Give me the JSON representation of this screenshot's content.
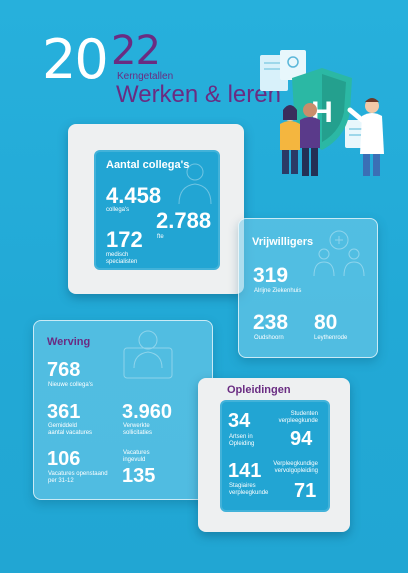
{
  "header": {
    "year_prefix": "20",
    "year_suffix": "22",
    "subtitle": "Kerngetallen",
    "title": "Werken & leren"
  },
  "colleagues": {
    "title": "Aantal collega's",
    "total_value": "4.458",
    "total_label": "collega's",
    "fte_value": "2.788",
    "fte_label": "fte",
    "specialists_value": "172",
    "specialists_label_1": "medisch",
    "specialists_label_2": "specialisten"
  },
  "volunteers": {
    "title": "Vrijwilligers",
    "alrijne_value": "319",
    "alrijne_label": "Alrijne Ziekenhuis",
    "oudshoorn_value": "238",
    "oudshoorn_label": "Oudshoorn",
    "leythenrode_value": "80",
    "leythenrode_label": "Leythenrode"
  },
  "recruitment": {
    "title": "Werving",
    "new_value": "768",
    "new_label": "Nieuwe collega's",
    "avg_vacancies_value": "361",
    "avg_vacancies_label_1": "Gemiddeld",
    "avg_vacancies_label_2": "aantal vacatures",
    "applications_value": "3.960",
    "applications_label_1": "Verwerkte",
    "applications_label_2": "sollicitaties",
    "open_value": "106",
    "open_label_1": "Vacatures openstaand",
    "open_label_2": "per 31-12",
    "filled_label_1": "Vacatures",
    "filled_label_2": "ingevuld",
    "filled_value": "135"
  },
  "training": {
    "title": "Opleidingen",
    "doctors_value": "34",
    "doctors_label_1": "Artsen in",
    "doctors_label_2": "Opleiding",
    "nursing_students_label_1": "Studenten",
    "nursing_students_label_2": "verpleegkunde",
    "nursing_students_value": "94",
    "interns_value": "141",
    "interns_label_1": "Stagiaires",
    "interns_label_2": "verpleegkunde",
    "advanced_label_1": "Verpleegkundige",
    "advanced_label_2": "vervolgopleiding",
    "advanced_value": "71"
  },
  "icons": [
    "hospital-shield-icon",
    "people-illustration",
    "group-line-icon",
    "doctor-line-icon"
  ],
  "colors": {
    "background": "#22a9d6",
    "accent_purple": "#6a2c82",
    "card_white": "#eef0f1"
  }
}
